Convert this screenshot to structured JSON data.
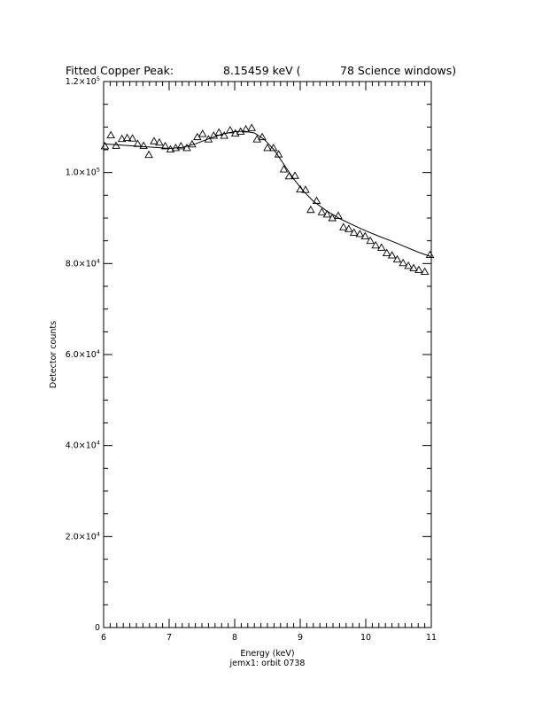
{
  "chart_data": {
    "type": "scatter",
    "title_parts": [
      "Fitted Copper Peak:",
      "8.15459 keV (",
      "78 Science windows)"
    ],
    "xlabel": "Energy (keV)",
    "ylabel": "Detector counts",
    "subtitle": "jemx1: orbit 0738",
    "xlim": [
      6,
      11
    ],
    "ylim": [
      0,
      120000
    ],
    "x_ticks": [
      6,
      7,
      8,
      9,
      10,
      11
    ],
    "x_tick_labels": [
      "6",
      "7",
      "8",
      "9",
      "10",
      "11"
    ],
    "y_ticks": [
      {
        "value": 0,
        "mant": "0",
        "exp": ""
      },
      {
        "value": 20000,
        "mant": "2.0×10",
        "exp": "4"
      },
      {
        "value": 40000,
        "mant": "4.0×10",
        "exp": "4"
      },
      {
        "value": 60000,
        "mant": "6.0×10",
        "exp": "4"
      },
      {
        "value": 80000,
        "mant": "8.0×10",
        "exp": "4"
      },
      {
        "value": 100000,
        "mant": "1.0×10",
        "exp": "5"
      },
      {
        "value": 120000,
        "mant": "1.2×10",
        "exp": "5"
      }
    ],
    "grid": false,
    "legend": "none",
    "series": [
      {
        "marker": "open-triangle",
        "x": [
          6.02,
          6.11,
          6.19,
          6.28,
          6.36,
          6.44,
          6.52,
          6.61,
          6.69,
          6.77,
          6.85,
          6.94,
          7.02,
          7.1,
          7.18,
          7.27,
          7.35,
          7.43,
          7.51,
          7.6,
          7.68,
          7.76,
          7.84,
          7.93,
          8.01,
          8.09,
          8.17,
          8.26,
          8.34,
          8.42,
          8.5,
          8.59,
          8.67,
          8.75,
          8.83,
          8.92,
          9.0,
          9.08,
          9.16,
          9.25,
          9.33,
          9.41,
          9.49,
          9.58,
          9.66,
          9.74,
          9.82,
          9.91,
          9.99,
          10.07,
          10.15,
          10.24,
          10.32,
          10.4,
          10.48,
          10.57,
          10.65,
          10.73,
          10.81,
          10.9,
          10.98
        ],
        "y": [
          105800,
          108200,
          105900,
          107400,
          107600,
          107500,
          106300,
          105900,
          103900,
          106900,
          106600,
          105800,
          105100,
          105400,
          105800,
          105400,
          106200,
          107800,
          108500,
          107300,
          108100,
          108800,
          108100,
          109300,
          108600,
          109000,
          109500,
          109800,
          107300,
          107800,
          105400,
          105400,
          104000,
          100700,
          99200,
          99300,
          96300,
          96200,
          91800,
          93800,
          91300,
          90800,
          90000,
          90500,
          88000,
          87600,
          86800,
          86500,
          86000,
          85000,
          84000,
          83500,
          82300,
          81800,
          80900,
          80100,
          79500,
          79000,
          78600,
          78200,
          81900
        ],
        "plot_subset_note": ""
      },
      {
        "type": "line",
        "x": [
          6.0,
          6.2,
          6.4,
          6.6,
          6.8,
          7.0,
          7.2,
          7.4,
          7.6,
          7.8,
          8.0,
          8.15,
          8.3,
          8.45,
          8.6,
          8.75,
          8.9,
          9.05,
          9.2,
          9.4,
          9.6,
          9.8,
          10.0,
          10.2,
          10.4,
          10.6,
          10.8,
          11.0
        ],
        "y": [
          106300,
          106100,
          105900,
          105700,
          105500,
          105300,
          105500,
          106300,
          107400,
          108400,
          109000,
          109100,
          108700,
          107300,
          105000,
          101800,
          98600,
          95900,
          93700,
          91600,
          89900,
          88500,
          87200,
          86000,
          84900,
          83700,
          82500,
          81500
        ]
      }
    ]
  }
}
